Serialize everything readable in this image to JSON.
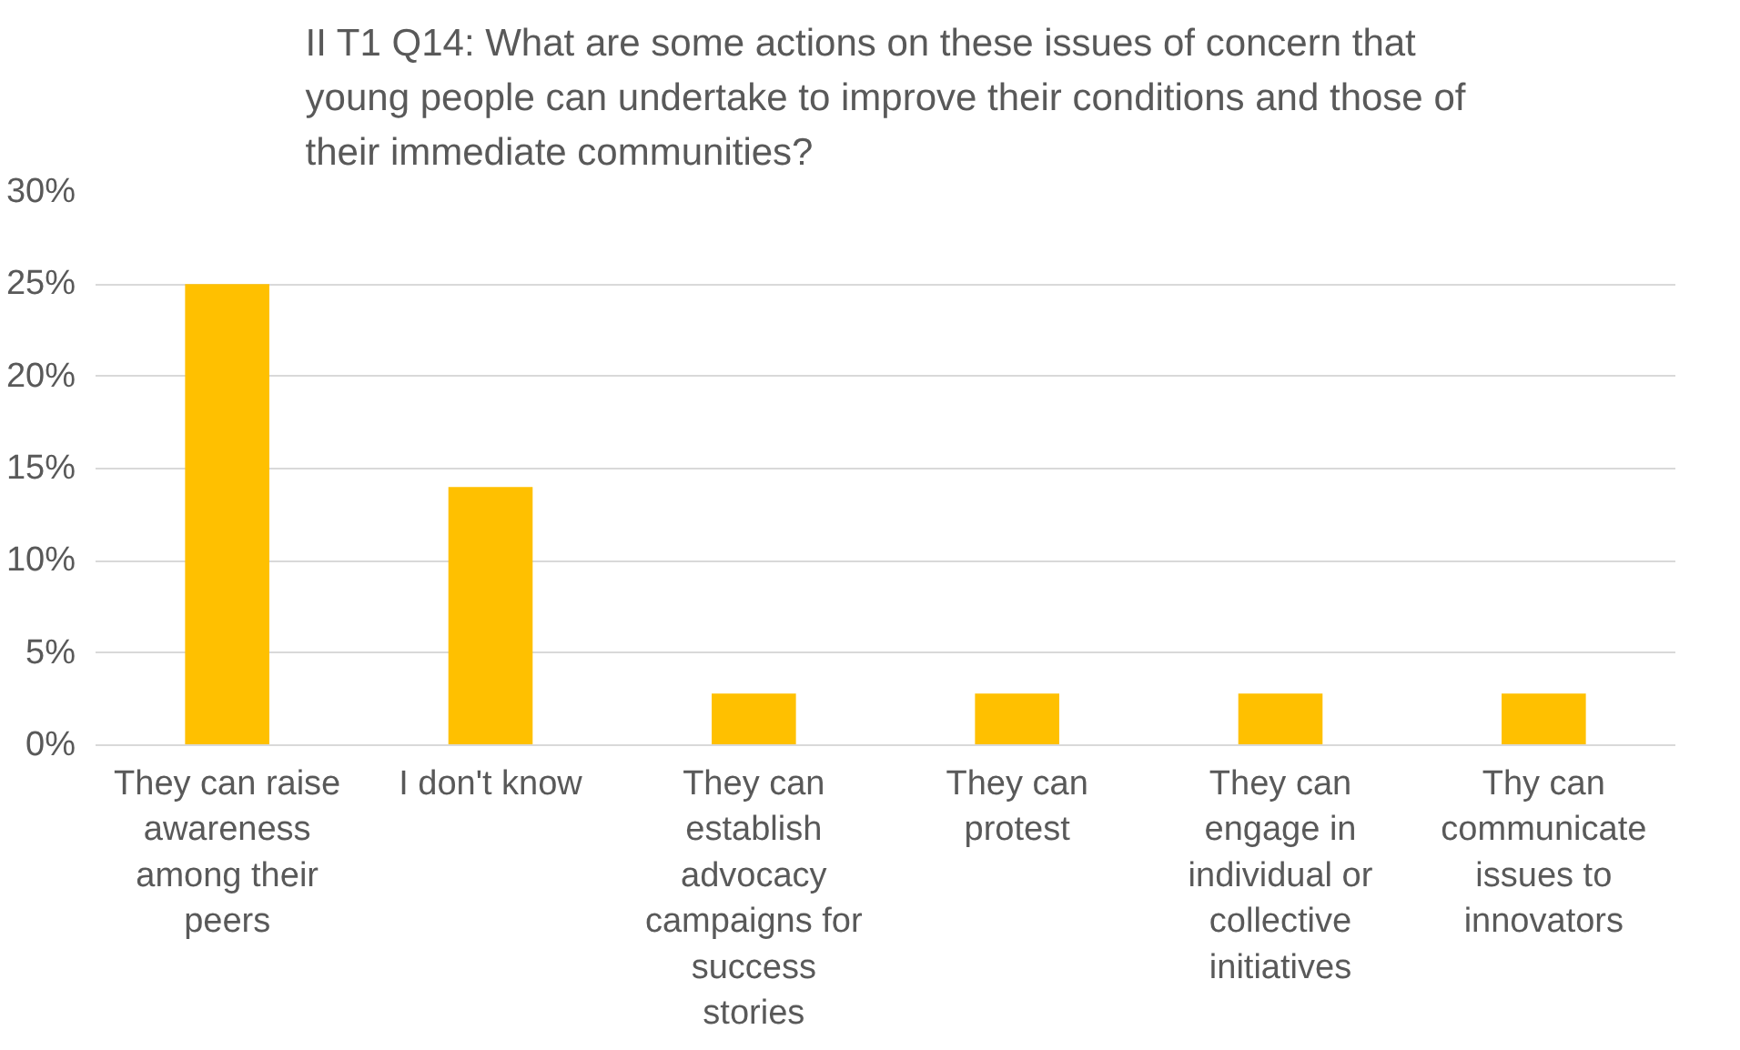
{
  "chart_data": {
    "type": "bar",
    "title": "II T1 Q14: What are some actions on these issues of concern that young people can undertake to improve their conditions and those of their immediate communities?",
    "categories": [
      "They can raise awareness among their peers",
      "I don't know",
      "They can establish advocacy campaigns for success stories",
      "They can protest",
      "They can engage in individual or collective initiatives",
      "Thy can communicate issues to innovators"
    ],
    "values": [
      25,
      14,
      2.8,
      2.8,
      2.8,
      2.8
    ],
    "color": "#ffc000",
    "ylim": [
      0,
      30
    ],
    "yticks": [
      {
        "value": 0,
        "label": "0%"
      },
      {
        "value": 5,
        "label": "5%"
      },
      {
        "value": 10,
        "label": "10%"
      },
      {
        "value": 15,
        "label": "15%"
      },
      {
        "value": 20,
        "label": "20%"
      },
      {
        "value": 25,
        "label": "25%"
      },
      {
        "value": 30,
        "label": "30%"
      }
    ],
    "grid": "y"
  }
}
